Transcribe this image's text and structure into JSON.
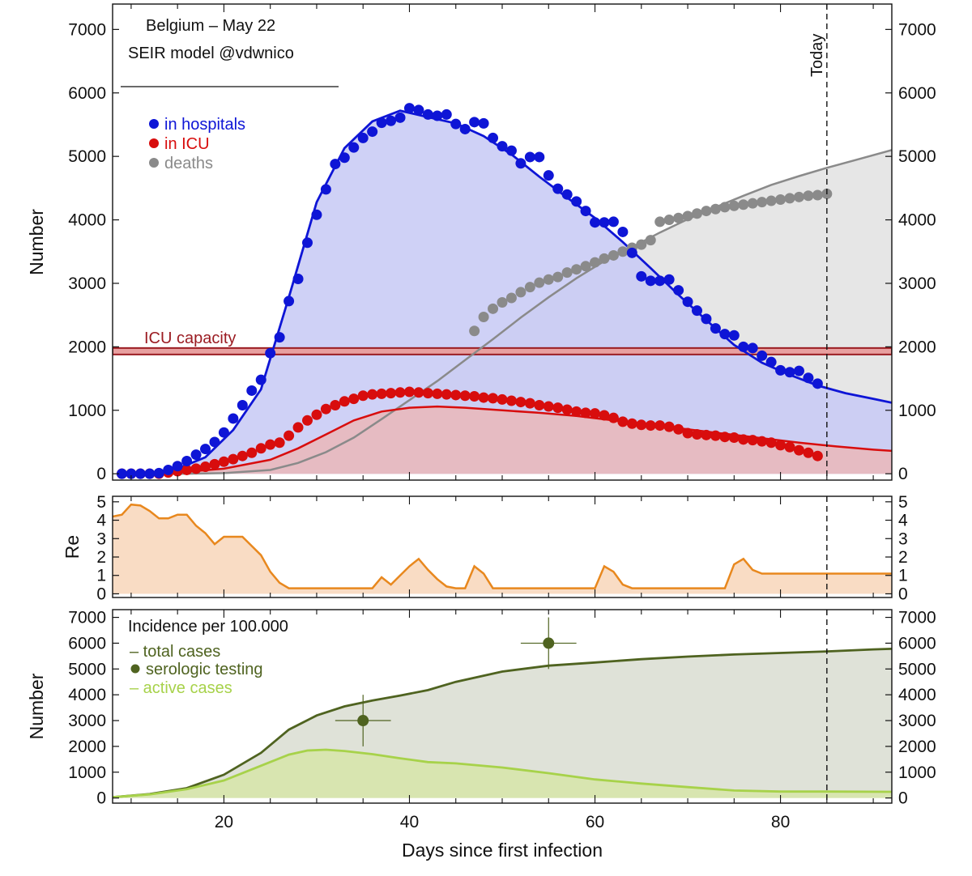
{
  "chart_data": [
    {
      "panel": "top",
      "type": "line",
      "title_lines": [
        "Belgium – May 22",
        "SEIR model @vdwnico"
      ],
      "ylabel": "Number",
      "xlim": [
        8,
        92
      ],
      "ylim": [
        -100,
        7400
      ],
      "yticks": [
        0,
        1000,
        2000,
        3000,
        4000,
        5000,
        6000,
        7000
      ],
      "grid": false,
      "legend_position": "top-left",
      "colors": {
        "hospitals": "#0e15d6",
        "icu": "#d80d0d",
        "deaths": "#8a8a8a",
        "capacity": "#9b1c22",
        "hosp_fill": "#c7c9f5",
        "icu_fill": "#eab7b9",
        "deaths_fill": "#e6e6e6",
        "capacity_band": "#e8a0a0"
      },
      "reference_line": {
        "label": "ICU capacity",
        "value": 1930
      },
      "today_marker": {
        "label": "Today",
        "x": 85
      },
      "series": [
        {
          "name": "in hospitals",
          "marker": "dot",
          "x": [
            9,
            10,
            11,
            12,
            13,
            14,
            15,
            16,
            17,
            18,
            19,
            20,
            21,
            22,
            23,
            24,
            25,
            26,
            27,
            28,
            29,
            30,
            31,
            32,
            33,
            34,
            35,
            36,
            37,
            38,
            39,
            40,
            41,
            42,
            43,
            44,
            45,
            46,
            47,
            48,
            49,
            50,
            51,
            52,
            53,
            54,
            55,
            56,
            57,
            58,
            59,
            60,
            61,
            62,
            63,
            64,
            65,
            66,
            67,
            68,
            69,
            70,
            71,
            72,
            73,
            74,
            75,
            76,
            77,
            78,
            79,
            80,
            81,
            82,
            83,
            84
          ],
          "y": [
            0,
            0,
            0,
            0,
            10,
            60,
            120,
            200,
            300,
            390,
            500,
            650,
            870,
            1080,
            1310,
            1480,
            1900,
            2150,
            2720,
            3070,
            3640,
            4080,
            4480,
            4880,
            4980,
            5140,
            5290,
            5390,
            5530,
            5560,
            5610,
            5760,
            5730,
            5660,
            5640,
            5660,
            5510,
            5430,
            5540,
            5520,
            5290,
            5160,
            5090,
            4890,
            4990,
            4990,
            4700,
            4490,
            4400,
            4290,
            4140,
            3960,
            3960,
            3970,
            3810,
            3480,
            3110,
            3040,
            3040,
            3060,
            2890,
            2710,
            2570,
            2440,
            2290,
            2200,
            2180,
            2000,
            1980,
            1860,
            1760,
            1630,
            1600,
            1620,
            1510,
            1420
          ]
        },
        {
          "name": "in ICU",
          "marker": "dot",
          "x": [
            9,
            10,
            11,
            12,
            13,
            14,
            15,
            16,
            17,
            18,
            19,
            20,
            21,
            22,
            23,
            24,
            25,
            26,
            27,
            28,
            29,
            30,
            31,
            32,
            33,
            34,
            35,
            36,
            37,
            38,
            39,
            40,
            41,
            42,
            43,
            44,
            45,
            46,
            47,
            48,
            49,
            50,
            51,
            52,
            53,
            54,
            55,
            56,
            57,
            58,
            59,
            60,
            61,
            62,
            63,
            64,
            65,
            66,
            67,
            68,
            69,
            70,
            71,
            72,
            73,
            74,
            75,
            76,
            77,
            78,
            79,
            80,
            81,
            82,
            83,
            84
          ],
          "y": [
            0,
            0,
            0,
            0,
            0,
            20,
            40,
            60,
            80,
            110,
            150,
            190,
            230,
            280,
            330,
            400,
            460,
            490,
            600,
            730,
            840,
            930,
            1020,
            1080,
            1140,
            1180,
            1230,
            1250,
            1260,
            1270,
            1280,
            1290,
            1280,
            1270,
            1260,
            1250,
            1240,
            1230,
            1220,
            1200,
            1190,
            1170,
            1150,
            1130,
            1110,
            1080,
            1060,
            1040,
            1010,
            980,
            960,
            950,
            920,
            880,
            820,
            790,
            770,
            760,
            760,
            740,
            700,
            640,
            620,
            610,
            600,
            580,
            570,
            540,
            530,
            510,
            490,
            450,
            420,
            370,
            330,
            280
          ]
        },
        {
          "name": "deaths",
          "marker": "dot",
          "x": [
            47,
            48,
            49,
            50,
            51,
            52,
            53,
            54,
            55,
            56,
            57,
            58,
            59,
            60,
            61,
            62,
            63,
            64,
            65,
            66,
            67,
            68,
            69,
            70,
            71,
            72,
            73,
            74,
            75,
            76,
            77,
            78,
            79,
            80,
            81,
            82,
            83,
            84,
            85
          ],
          "y": [
            2250,
            2470,
            2600,
            2700,
            2770,
            2860,
            2940,
            3010,
            3060,
            3100,
            3170,
            3220,
            3270,
            3330,
            3390,
            3440,
            3500,
            3560,
            3610,
            3680,
            3970,
            4000,
            4030,
            4060,
            4100,
            4140,
            4170,
            4200,
            4220,
            4240,
            4260,
            4280,
            4300,
            4320,
            4340,
            4360,
            4380,
            4390,
            4410
          ]
        },
        {
          "name": "hospitals model",
          "marker": "line",
          "x": [
            9,
            12,
            15,
            18,
            21,
            24,
            27,
            30,
            33,
            36,
            39,
            42,
            45,
            48,
            51,
            54,
            57,
            60,
            63,
            66,
            69,
            72,
            75,
            78,
            81,
            84,
            87,
            90,
            92
          ],
          "y": [
            0,
            10,
            80,
            260,
            690,
            1330,
            2780,
            4280,
            5130,
            5550,
            5720,
            5620,
            5520,
            5320,
            5030,
            4680,
            4350,
            4030,
            3650,
            3240,
            2820,
            2420,
            2030,
            1750,
            1560,
            1390,
            1270,
            1180,
            1120
          ]
        },
        {
          "name": "ICU model",
          "marker": "line",
          "x": [
            9,
            15,
            20,
            25,
            28,
            31,
            34,
            37,
            40,
            43,
            46,
            50,
            54,
            58,
            62,
            66,
            70,
            74,
            78,
            82,
            86,
            90,
            92
          ],
          "y": [
            0,
            20,
            80,
            220,
            400,
            620,
            840,
            980,
            1040,
            1060,
            1040,
            1000,
            960,
            910,
            840,
            770,
            700,
            630,
            560,
            490,
            430,
            380,
            360
          ]
        },
        {
          "name": "deaths model",
          "marker": "line",
          "x": [
            9,
            15,
            20,
            25,
            28,
            31,
            34,
            37,
            40,
            43,
            46,
            49,
            52,
            55,
            58,
            61,
            64,
            67,
            70,
            73,
            76,
            79,
            82,
            85,
            88,
            92
          ],
          "y": [
            0,
            0,
            10,
            60,
            170,
            340,
            570,
            860,
            1160,
            1460,
            1790,
            2120,
            2460,
            2780,
            3080,
            3350,
            3570,
            3800,
            4010,
            4200,
            4380,
            4550,
            4690,
            4820,
            4940,
            5100
          ]
        }
      ]
    },
    {
      "panel": "middle",
      "type": "area",
      "ylabel": "Re",
      "xlim": [
        8,
        92
      ],
      "ylim": [
        -0.2,
        5.3
      ],
      "yticks": [
        0,
        1,
        2,
        3,
        4,
        5
      ],
      "colors": {
        "line": "#e8881e",
        "fill": "#f9dcc4"
      },
      "series": [
        {
          "name": "",
          "x": [
            8,
            9,
            10,
            11,
            12,
            13,
            14,
            15,
            16,
            17,
            18,
            19,
            20,
            21,
            22,
            23,
            24,
            25,
            26,
            27,
            28,
            29,
            30,
            35,
            36,
            37,
            38,
            39,
            40,
            41,
            42,
            43,
            44,
            45,
            46,
            47,
            48,
            49,
            50,
            55,
            60,
            61,
            62,
            63,
            64,
            70,
            74,
            75,
            76,
            77,
            78,
            79,
            80,
            85,
            92
          ],
          "y": [
            4.2,
            4.3,
            4.85,
            4.8,
            4.5,
            4.1,
            4.1,
            4.3,
            4.3,
            3.7,
            3.3,
            2.7,
            3.1,
            3.1,
            3.1,
            2.6,
            2.1,
            1.2,
            0.6,
            0.3,
            0.3,
            0.3,
            0.3,
            0.3,
            0.3,
            0.9,
            0.5,
            1.0,
            1.5,
            1.9,
            1.3,
            0.8,
            0.4,
            0.3,
            0.3,
            1.5,
            1.1,
            0.3,
            0.3,
            0.3,
            0.3,
            1.5,
            1.2,
            0.5,
            0.3,
            0.3,
            0.3,
            1.6,
            1.9,
            1.3,
            1.1,
            1.1,
            1.1,
            1.1,
            1.1
          ]
        }
      ]
    },
    {
      "panel": "bottom",
      "type": "line",
      "title": "Incidence per 100.000",
      "xlabel": "Days since first infection",
      "ylabel": "Number",
      "xlim": [
        8,
        92
      ],
      "ylim": [
        -200,
        7300
      ],
      "xticks": [
        20,
        40,
        60,
        80
      ],
      "yticks": [
        0,
        1000,
        2000,
        3000,
        4000,
        5000,
        6000,
        7000
      ],
      "legend_position": "top-left",
      "colors": {
        "total": "#4f6320",
        "serologic": "#4f6320",
        "active": "#a7d24a",
        "total_fill": "#dfe2d8",
        "active_fill": "#d8e5b0"
      },
      "series": [
        {
          "name": "total cases",
          "marker": "line",
          "x": [
            8,
            12,
            16,
            20,
            24,
            27,
            30,
            33,
            36,
            39,
            42,
            45,
            50,
            55,
            60,
            65,
            70,
            75,
            80,
            85,
            90,
            92
          ],
          "y": [
            30,
            150,
            380,
            900,
            1750,
            2650,
            3200,
            3550,
            3780,
            3970,
            4180,
            4500,
            4900,
            5130,
            5250,
            5380,
            5480,
            5560,
            5620,
            5680,
            5760,
            5780
          ]
        },
        {
          "name": "serologic testing",
          "marker": "dot",
          "points": [
            {
              "x": 35,
              "y": 3000,
              "xerr": 3,
              "yerr": 1000
            },
            {
              "x": 55,
              "y": 6000,
              "xerr": 3,
              "yerr": 1000
            }
          ]
        },
        {
          "name": "active cases",
          "marker": "line",
          "x": [
            8,
            12,
            16,
            20,
            24,
            27,
            29,
            31,
            33,
            36,
            39,
            42,
            45,
            50,
            55,
            60,
            65,
            70,
            75,
            80,
            85,
            92
          ],
          "y": [
            30,
            140,
            340,
            680,
            1250,
            1680,
            1840,
            1870,
            1820,
            1700,
            1540,
            1390,
            1340,
            1180,
            960,
            720,
            560,
            420,
            290,
            250,
            250,
            240
          ]
        }
      ]
    }
  ]
}
